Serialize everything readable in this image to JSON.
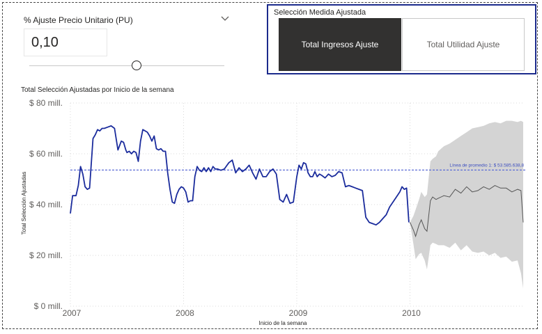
{
  "slicer": {
    "title": "% Ajuste Precio Unitario (PU)",
    "value": "0,10"
  },
  "measure_selector": {
    "title": "Selección Medida Ajustada",
    "options": [
      "Total Ingresos Ajuste",
      "Total Utilidad Ajuste"
    ],
    "selected": "Total Ingresos Ajuste"
  },
  "colors": {
    "line": "#1a2b9c",
    "forecast": "#555555",
    "band": "#d4d4d4",
    "avg": "#5b6bd6"
  },
  "chart_data": {
    "type": "line",
    "title": "Total Selección Ajustadas por Inicio de la semana",
    "xlabel": "Inicio de la semana",
    "ylabel": "Total Selección Ajustadas",
    "x_ticks": [
      "2007",
      "2008",
      "2009",
      "2010"
    ],
    "y_ticks": [
      "$ 0 mill.",
      "$ 20 mill.",
      "$ 40 mill.",
      "$ 60 mill.",
      "$ 80 mill."
    ],
    "xlim": [
      2007.0,
      2011.0
    ],
    "ylim": [
      0,
      80
    ],
    "grid": true,
    "average_label": "Línea de promedio 1: $ 53.585.638,8",
    "average_value": 53.59,
    "series": [
      {
        "role": "actual",
        "x": [
          2007.0,
          2007.02,
          2007.05,
          2007.07,
          2007.09,
          2007.11,
          2007.13,
          2007.15,
          2007.17,
          2007.2,
          2007.22,
          2007.24,
          2007.26,
          2007.28,
          2007.3,
          2007.33,
          2007.36,
          2007.39,
          2007.42,
          2007.45,
          2007.47,
          2007.49,
          2007.5,
          2007.52,
          2007.54,
          2007.56,
          2007.58,
          2007.6,
          2007.62,
          2007.64,
          2007.66,
          2007.68,
          2007.7,
          2007.72,
          2007.74,
          2007.76,
          2007.78,
          2007.8,
          2007.82,
          2007.84,
          2007.86,
          2007.88,
          2007.9,
          2007.92,
          2007.94,
          2007.96,
          2007.98,
          2008.0,
          2008.02,
          2008.04,
          2008.06,
          2008.08,
          2008.1,
          2008.12,
          2008.14,
          2008.16,
          2008.18,
          2008.2,
          2008.22,
          2008.24,
          2008.26,
          2008.28,
          2008.3,
          2008.33,
          2008.36,
          2008.4,
          2008.43,
          2008.46,
          2008.49,
          2008.52,
          2008.55,
          2008.58,
          2008.61,
          2008.64,
          2008.67,
          2008.7,
          2008.73,
          2008.76,
          2008.79,
          2008.82,
          2008.85,
          2008.88,
          2008.91,
          2008.94,
          2008.97,
          2009.0,
          2009.02,
          2009.04,
          2009.06,
          2009.08,
          2009.1,
          2009.12,
          2009.14,
          2009.16,
          2009.18,
          2009.2,
          2009.22,
          2009.25,
          2009.28,
          2009.31,
          2009.34,
          2009.37,
          2009.4,
          2009.43,
          2009.46,
          2009.49,
          2009.52,
          2009.55,
          2009.58,
          2009.61,
          2009.64,
          2009.67,
          2009.7,
          2009.73,
          2009.76,
          2009.79,
          2009.82,
          2009.85,
          2009.88,
          2009.91,
          2009.93,
          2009.95,
          2009.97,
          2009.99
        ],
        "y": [
          36.5,
          43.5,
          43.5,
          47.5,
          55.0,
          52.0,
          47.0,
          46.0,
          46.5,
          66.0,
          67.5,
          69.5,
          69.0,
          70.0,
          70.0,
          70.5,
          71.0,
          70.0,
          61.5,
          65.0,
          64.5,
          61.5,
          60.5,
          61.0,
          60.0,
          61.0,
          60.5,
          57.0,
          65.0,
          69.5,
          69.0,
          68.5,
          67.0,
          65.0,
          67.0,
          62.0,
          61.5,
          62.0,
          61.0,
          61.0,
          52.5,
          46.0,
          41.0,
          40.5,
          44.0,
          46.0,
          47.0,
          46.5,
          45.0,
          41.0,
          41.5,
          41.5,
          51.0,
          55.0,
          53.5,
          53.0,
          54.5,
          53.0,
          54.5,
          53.0,
          55.0,
          54.0,
          54.0,
          53.5,
          54.0,
          56.5,
          57.5,
          52.5,
          54.5,
          53.0,
          54.0,
          55.5,
          52.5,
          50.0,
          54.0,
          51.0,
          51.0,
          53.0,
          54.0,
          52.0,
          42.0,
          41.0,
          44.0,
          40.5,
          41.0,
          51.0,
          55.5,
          54.0,
          56.5,
          56.0,
          52.5,
          51.0,
          51.0,
          53.0,
          51.0,
          52.0,
          51.5,
          50.5,
          52.0,
          51.0,
          51.5,
          53.0,
          52.5,
          47.0,
          47.5,
          47.0,
          46.5,
          46.0,
          45.5,
          35.0,
          33.0,
          32.5,
          32.0,
          33.0,
          34.5,
          36.0,
          39.0,
          41.0,
          43.0,
          45.0,
          47.0,
          46.0,
          46.5,
          33.0
        ],
        "note": "actual weekly values (blue)"
      }
    ],
    "forecast": {
      "x": [
        2010.0,
        2010.03,
        2010.05,
        2010.08,
        2010.1,
        2010.13,
        2010.15,
        2010.18,
        2010.2,
        2010.23,
        2010.25,
        2010.3,
        2010.35,
        2010.4,
        2010.45,
        2010.5,
        2010.55,
        2010.6,
        2010.65,
        2010.7,
        2010.75,
        2010.8,
        2010.85,
        2010.9,
        2010.95,
        2010.98,
        2011.0
      ],
      "y": [
        33.0,
        30.0,
        27.5,
        32.0,
        34.0,
        30.5,
        29.5,
        41.5,
        43.0,
        42.0,
        42.5,
        43.5,
        43.0,
        46.0,
        44.5,
        47.0,
        45.0,
        45.5,
        47.0,
        46.0,
        47.5,
        46.5,
        46.5,
        45.0,
        46.0,
        45.5,
        33.0
      ],
      "upper": [
        33.0,
        35.5,
        38.0,
        42.0,
        45.0,
        43.0,
        44.0,
        57.0,
        58.0,
        59.0,
        61.0,
        63.0,
        64.0,
        65.5,
        67.0,
        68.5,
        70.0,
        70.5,
        71.0,
        72.0,
        72.5,
        72.0,
        73.0,
        73.0,
        72.5,
        73.0,
        72.5
      ],
      "lower": [
        33.0,
        24.5,
        18.5,
        20.5,
        21.0,
        18.0,
        14.5,
        24.0,
        25.0,
        24.5,
        24.0,
        24.0,
        23.0,
        25.0,
        22.0,
        24.0,
        21.5,
        21.0,
        21.5,
        20.0,
        21.0,
        19.0,
        19.5,
        17.5,
        18.0,
        13.0,
        7.0
      ]
    }
  }
}
